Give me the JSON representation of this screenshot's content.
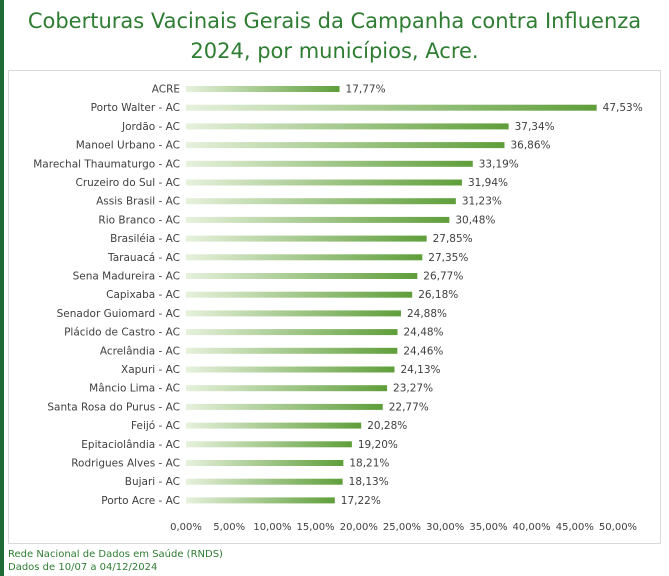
{
  "title_line1": "Coberturas Vacinais Gerais da Campanha contra Influenza",
  "title_line2": "2024, por municípios, Acre.",
  "footer_line1": "Rede Nacional de Dados em Saúde (RNDS)",
  "footer_line2": "Dados de 10/07 a 04/12/2024",
  "colors": {
    "bar_dark": "#5f9e3a",
    "bar_light": "#e6f1dc",
    "title": "#2e7d32",
    "frame": "#1f6b35"
  },
  "chart_data": {
    "type": "bar",
    "orientation": "horizontal",
    "categories": [
      "ACRE",
      "Porto Walter - AC",
      "Jordão - AC",
      "Manoel Urbano - AC",
      "Marechal Thaumaturgo - AC",
      "Cruzeiro do Sul - AC",
      "Assis Brasil - AC",
      "Rio Branco - AC",
      "Brasiléia - AC",
      "Tarauacá - AC",
      "Sena Madureira - AC",
      "Capixaba - AC",
      "Senador Guiomard - AC",
      "Plácido de Castro - AC",
      "Acrelândia - AC",
      "Xapuri - AC",
      "Mâncio Lima - AC",
      "Santa Rosa do Purus - AC",
      "Feijó - AC",
      "Epitaciolândia - AC",
      "Rodrigues Alves - AC",
      "Bujari - AC",
      "Porto Acre - AC"
    ],
    "values": [
      17.77,
      47.53,
      37.34,
      36.86,
      33.19,
      31.94,
      31.23,
      30.48,
      27.85,
      27.35,
      26.77,
      26.18,
      24.88,
      24.48,
      24.46,
      24.13,
      23.27,
      22.77,
      20.28,
      19.2,
      18.21,
      18.13,
      17.22
    ],
    "value_labels": [
      "17,77%",
      "47,53%",
      "37,34%",
      "36,86%",
      "33,19%",
      "31,94%",
      "31,23%",
      "30,48%",
      "27,85%",
      "27,35%",
      "26,77%",
      "26,18%",
      "24,88%",
      "24,48%",
      "24,46%",
      "24,13%",
      "23,27%",
      "22,77%",
      "20,28%",
      "19,20%",
      "18,21%",
      "18,13%",
      "17,22%"
    ],
    "xlim": [
      0,
      50
    ],
    "xticks": [
      "0,00%",
      "5,00%",
      "10,00%",
      "15,00%",
      "20,00%",
      "25,00%",
      "30,00%",
      "35,00%",
      "40,00%",
      "45,00%",
      "50,00%"
    ],
    "grid": false,
    "legend": "none"
  }
}
